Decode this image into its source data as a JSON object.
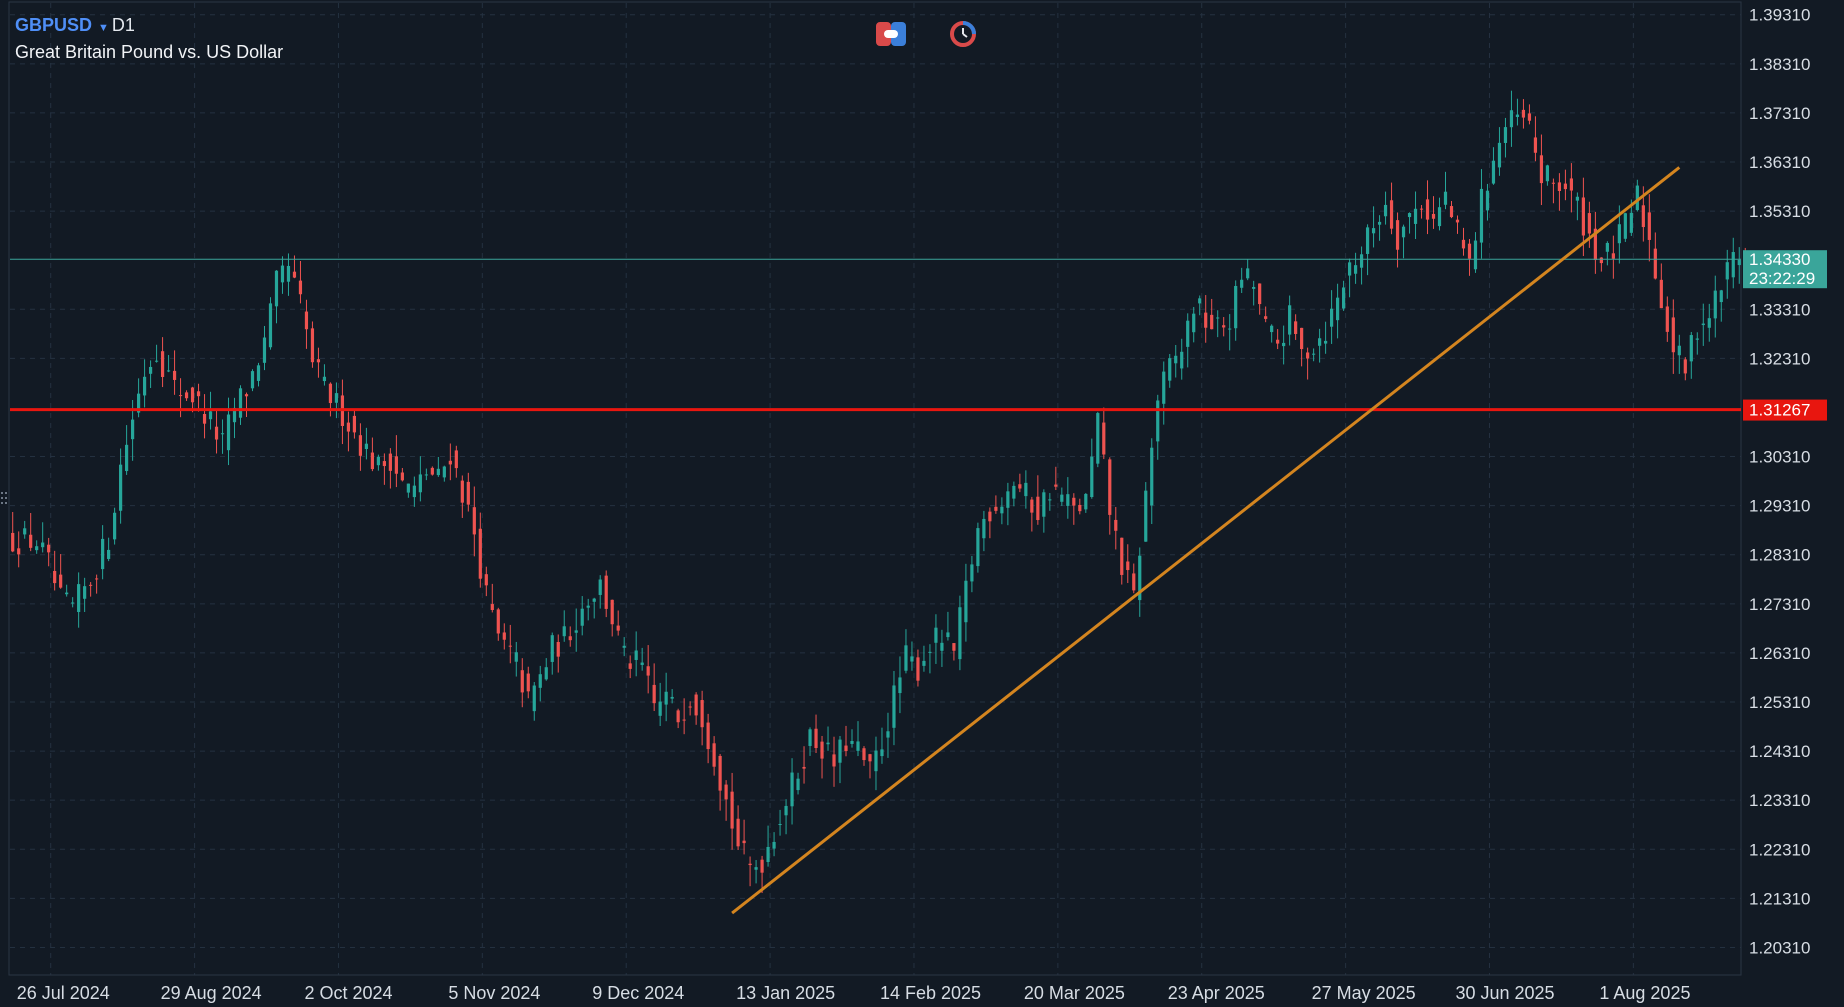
{
  "header": {
    "symbol": "GBPUSD",
    "timeframe": "D1",
    "description": "Great Britain Pound vs. US Dollar"
  },
  "toolbar": {
    "buttons": [
      {
        "name": "trade-panel-toggle",
        "icon": "trade-panel-icon",
        "color": "#d94a4a"
      },
      {
        "name": "history-toggle",
        "icon": "clock-history-icon",
        "color": "#d94a4a"
      }
    ]
  },
  "colors": {
    "background": "#121a24",
    "grid": "#243140",
    "axis_text": "#d7dde4",
    "bull": "#26a69a",
    "bear": "#ef5350",
    "bid_line": "#3aa59a",
    "support_line": "#e8160f",
    "trendline": "#d4851f"
  },
  "chart_data": {
    "type": "candlestick",
    "symbol": "GBPUSD",
    "timeframe": "D1",
    "ylim": [
      1.1981,
      1.3961
    ],
    "yticks": [
      "1.39310",
      "1.38310",
      "1.37310",
      "1.36310",
      "1.35310",
      "1.34330",
      "1.33310",
      "1.32310",
      "1.31267",
      "1.30310",
      "1.29310",
      "1.28310",
      "1.27310",
      "1.26310",
      "1.25310",
      "1.24310",
      "1.23310",
      "1.22310",
      "1.21310",
      "1.20310"
    ],
    "ytick_values": [
      1.3931,
      1.3831,
      1.3731,
      1.3631,
      1.3531,
      1.3433,
      1.3331,
      1.3231,
      1.31267,
      1.3031,
      1.2931,
      1.2831,
      1.2731,
      1.2631,
      1.2531,
      1.2431,
      1.2331,
      1.2231,
      1.2131,
      1.2031
    ],
    "xticks": [
      {
        "label": "26 Jul 2024",
        "bar": 1
      },
      {
        "label": "29 Aug 2024",
        "bar": 25
      },
      {
        "label": "2 Oct 2024",
        "bar": 49
      },
      {
        "label": "5 Nov 2024",
        "bar": 73
      },
      {
        "label": "9 Dec 2024",
        "bar": 97
      },
      {
        "label": "13 Jan 2025",
        "bar": 121
      },
      {
        "label": "14 Feb 2025",
        "bar": 145
      },
      {
        "label": "20 Mar 2025",
        "bar": 169
      },
      {
        "label": "23 Apr 2025",
        "bar": 193
      },
      {
        "label": "27 May 2025",
        "bar": 217
      },
      {
        "label": "30 Jun 2025",
        "bar": 241
      },
      {
        "label": "1 Aug 2025",
        "bar": 265
      }
    ],
    "current_price": {
      "value": 1.3433,
      "label": "1.34330",
      "countdown": "23:22:29"
    },
    "horizontal_levels": [
      {
        "value": 1.31267,
        "label": "1.31267"
      }
    ],
    "trendline": {
      "from": {
        "bar": 120,
        "price": 1.2101
      },
      "to": {
        "bar": 278,
        "price": 1.362
      }
    },
    "bar_count": 272,
    "anchors": [
      [
        0,
        1.2862
      ],
      [
        4,
        1.2858
      ],
      [
        6,
        1.281
      ],
      [
        8,
        1.2735
      ],
      [
        10,
        1.2722
      ],
      [
        13,
        1.278
      ],
      [
        16,
        1.2865
      ],
      [
        18,
        1.301
      ],
      [
        20,
        1.3112
      ],
      [
        22,
        1.3205
      ],
      [
        24,
        1.3248
      ],
      [
        27,
        1.317
      ],
      [
        30,
        1.3155
      ],
      [
        33,
        1.31
      ],
      [
        35,
        1.3055
      ],
      [
        37,
        1.313
      ],
      [
        39,
        1.3168
      ],
      [
        42,
        1.326
      ],
      [
        44,
        1.338
      ],
      [
        46,
        1.3415
      ],
      [
        48,
        1.334
      ],
      [
        50,
        1.3225
      ],
      [
        52,
        1.317
      ],
      [
        55,
        1.312
      ],
      [
        58,
        1.306
      ],
      [
        61,
        1.3008
      ],
      [
        63,
        1.303
      ],
      [
        65,
        1.2975
      ],
      [
        67,
        1.296
      ],
      [
        69,
        1.3
      ],
      [
        71,
        1.2985
      ],
      [
        73,
        1.304
      ],
      [
        75,
        1.296
      ],
      [
        77,
        1.2875
      ],
      [
        79,
        1.2745
      ],
      [
        81,
        1.266
      ],
      [
        84,
        1.261
      ],
      [
        86,
        1.253
      ],
      [
        88,
        1.258
      ],
      [
        90,
        1.264
      ],
      [
        92,
        1.266
      ],
      [
        94,
        1.27
      ],
      [
        96,
        1.2745
      ],
      [
        98,
        1.277
      ],
      [
        100,
        1.27
      ],
      [
        102,
        1.262
      ],
      [
        105,
        1.26
      ],
      [
        107,
        1.252
      ],
      [
        109,
        1.254
      ],
      [
        111,
        1.25
      ],
      [
        113,
        1.2545
      ],
      [
        115,
        1.2505
      ],
      [
        117,
        1.2425
      ],
      [
        119,
        1.233
      ],
      [
        121,
        1.224
      ],
      [
        123,
        1.219
      ],
      [
        125,
        1.221
      ],
      [
        127,
        1.227
      ],
      [
        129,
        1.233
      ],
      [
        131,
        1.239
      ],
      [
        133,
        1.246
      ],
      [
        135,
        1.244
      ],
      [
        137,
        1.2405
      ],
      [
        139,
        1.245
      ],
      [
        141,
        1.243
      ],
      [
        143,
        1.2385
      ],
      [
        145,
        1.245
      ],
      [
        147,
        1.254
      ],
      [
        149,
        1.262
      ],
      [
        151,
        1.26
      ],
      [
        153,
        1.265
      ],
      [
        155,
        1.266
      ],
      [
        157,
        1.263
      ],
      [
        159,
        1.276
      ],
      [
        161,
        1.288
      ],
      [
        163,
        1.2925
      ],
      [
        165,
        1.2945
      ],
      [
        167,
        1.298
      ],
      [
        169,
        1.295
      ],
      [
        171,
        1.292
      ],
      [
        173,
        1.2965
      ],
      [
        175,
        1.295
      ],
      [
        177,
        1.292
      ],
      [
        179,
        1.294
      ],
      [
        181,
        1.31
      ],
      [
        183,
        1.292
      ],
      [
        185,
        1.281
      ],
      [
        187,
        1.274
      ],
      [
        189,
        1.295
      ],
      [
        191,
        1.315
      ],
      [
        193,
        1.321
      ],
      [
        195,
        1.325
      ],
      [
        197,
        1.334
      ],
      [
        199,
        1.331
      ],
      [
        201,
        1.329
      ],
      [
        203,
        1.331
      ],
      [
        205,
        1.34
      ],
      [
        207,
        1.338
      ],
      [
        209,
        1.329
      ],
      [
        211,
        1.326
      ],
      [
        213,
        1.331
      ],
      [
        215,
        1.324
      ],
      [
        217,
        1.326
      ],
      [
        219,
        1.329
      ],
      [
        221,
        1.335
      ],
      [
        223,
        1.342
      ],
      [
        225,
        1.345
      ],
      [
        227,
        1.35
      ],
      [
        229,
        1.355
      ],
      [
        231,
        1.348
      ],
      [
        233,
        1.352
      ],
      [
        235,
        1.355
      ],
      [
        237,
        1.351
      ],
      [
        239,
        1.356
      ],
      [
        241,
        1.348
      ],
      [
        243,
        1.342
      ],
      [
        245,
        1.355
      ],
      [
        247,
        1.364
      ],
      [
        249,
        1.37
      ],
      [
        251,
        1.372
      ],
      [
        253,
        1.37
      ],
      [
        255,
        1.36
      ],
      [
        257,
        1.359
      ],
      [
        259,
        1.358
      ],
      [
        261,
        1.354
      ],
      [
        263,
        1.348
      ],
      [
        265,
        1.343
      ],
      [
        267,
        1.345
      ],
      [
        269,
        1.35
      ],
      [
        271,
        1.356
      ],
      [
        273,
        1.347
      ],
      [
        275,
        1.335
      ],
      [
        277,
        1.325
      ],
      [
        279,
        1.321
      ],
      [
        281,
        1.33
      ],
      [
        283,
        1.332
      ],
      [
        285,
        1.338
      ],
      [
        287,
        1.344
      ],
      [
        289,
        1.3435
      ]
    ]
  }
}
